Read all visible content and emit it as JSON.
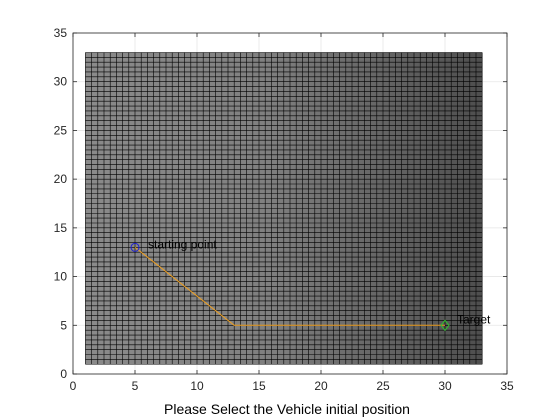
{
  "chart_data": {
    "type": "line",
    "title": "",
    "xlabel": "Please Select the Vehicle initial position",
    "ylabel": "",
    "xlim": [
      0,
      35
    ],
    "ylim": [
      0,
      35
    ],
    "xticks": [
      0,
      5,
      10,
      15,
      20,
      25,
      30,
      35
    ],
    "yticks": [
      0,
      5,
      10,
      15,
      20,
      25,
      30,
      35
    ],
    "grid": true,
    "occupancy_map": {
      "x_range": [
        1,
        33
      ],
      "y_range": [
        1,
        33
      ],
      "cell_size": 0.5,
      "color_left": "#8a8a8a",
      "color_right": "#4e4e4e",
      "line_color": "#000000"
    },
    "path": {
      "color": "#f0a020",
      "x": [
        5,
        13,
        30
      ],
      "y": [
        13,
        5,
        5
      ]
    },
    "start": {
      "x": 5,
      "y": 13,
      "label": "starting point",
      "color": "#2020d0"
    },
    "target": {
      "x": 30,
      "y": 5,
      "label": "Target",
      "color": "#30c030"
    }
  }
}
